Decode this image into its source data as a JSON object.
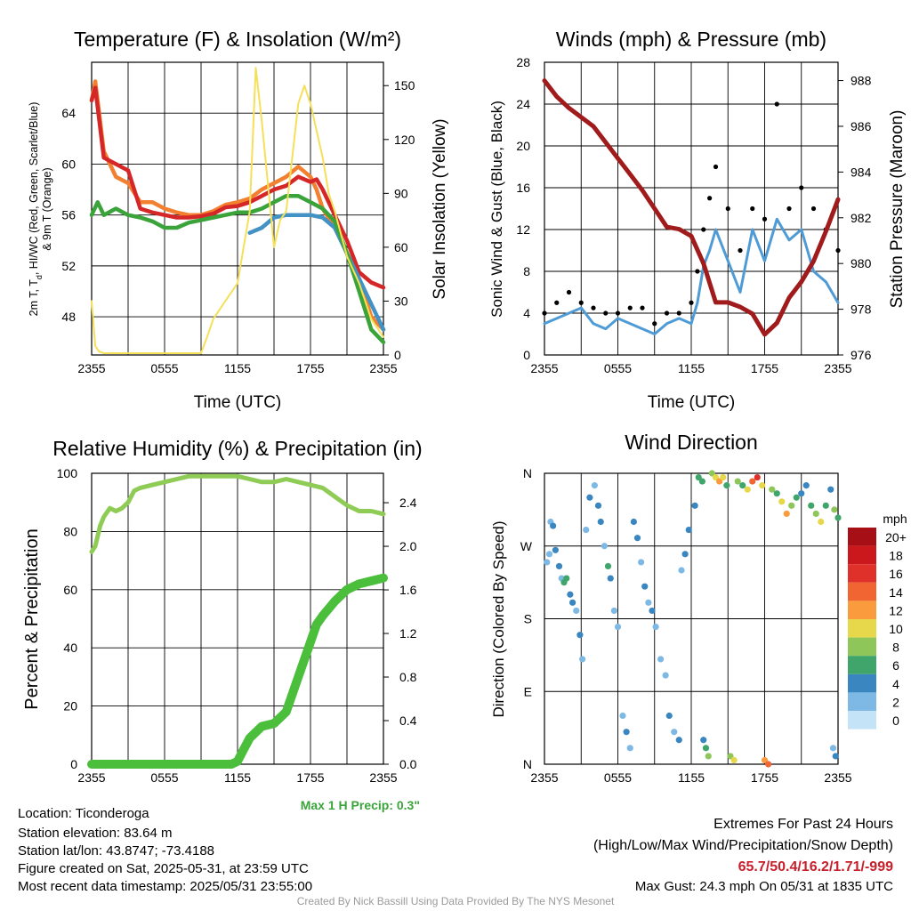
{
  "footer": {
    "location": "Location: Ticonderoga",
    "elevation": "Station elevation: 83.64 m",
    "latlon": "Station lat/lon: 43.8747; -73.4188",
    "created": "Figure created on Sat, 2025-05-31, at 23:59 UTC",
    "recent": "Most recent data timestamp: 2025/05/31 23:55:00",
    "extremes_title": "Extremes For Past 24 Hours",
    "extremes_legend": "(High/Low/Max Wind/Precipitation/Snow Depth)",
    "extremes_values": "65.7/50.4/16.2/1.71/-999",
    "max_gust": "Max Gust: 24.3 mph On 05/31 at 1835 UTC",
    "credit": "Created By Nick Bassill Using Data Provided By The NYS Mesonet",
    "max_precip": "Max 1 H Precip: 0.3\""
  },
  "colors": {
    "temp": "#d62728",
    "dewpoint": "#3aa33a",
    "heat_index": "#4292c6",
    "temp9m": "#f28030",
    "solar": "#f5e05a",
    "wind": "#4e9bd6",
    "gust": "#000000",
    "pressure": "#a01c1c",
    "rh": "#8fcc55",
    "precip": "#4bbf3c",
    "extremes_text": "#c8202b"
  },
  "chart_data": [
    {
      "type": "line",
      "title": "Temperature (F) & Insolation (W/m²)",
      "xlabel": "Time (UTC)",
      "ylabel": "2m T, T_d, HI/WC (Red, Green, Scarlet/Blue) & 9m T (Orange)",
      "ylabel_line1": "2m T, T",
      "ylabel_sub": "d",
      "ylabel_rest": ", HI/WC (Red, Green, Scarlet/Blue)",
      "ylabel_line2": "& 9m T (Orange)",
      "y2label": "Solar Insolation (Yellow)",
      "xticks": [
        "2355",
        "0555",
        "1155",
        "1755",
        "2355"
      ],
      "ylim": [
        45,
        68
      ],
      "yticks": [
        48,
        52,
        56,
        60,
        64
      ],
      "y2lim": [
        0,
        163
      ],
      "y2ticks": [
        0,
        30,
        60,
        90,
        120,
        150
      ],
      "series": [
        {
          "key": "temp9m",
          "axis": "left",
          "x": [
            0,
            0.3,
            1,
            2,
            3,
            4,
            5,
            6,
            7,
            8,
            9,
            10,
            11,
            12,
            13,
            14,
            15,
            16,
            17,
            18,
            18.5,
            19,
            20,
            21,
            22,
            23,
            24
          ],
          "y": [
            65,
            66.5,
            61,
            59,
            58.5,
            57,
            57,
            56.5,
            56.2,
            56,
            56,
            56.3,
            56.8,
            57,
            57.3,
            58,
            58.5,
            59,
            59.8,
            59,
            58,
            56.5,
            55,
            53,
            51,
            48,
            47
          ]
        },
        {
          "key": "temp",
          "axis": "left",
          "x": [
            0,
            0.3,
            1,
            2,
            3,
            4,
            5,
            6,
            7,
            8,
            9,
            10,
            11,
            12,
            13,
            14,
            15,
            16,
            17,
            18,
            18.5,
            19,
            20,
            21,
            22,
            23,
            24
          ],
          "y": [
            65,
            66,
            60.5,
            60,
            59.5,
            56.5,
            56.2,
            56,
            55.8,
            55.8,
            55.9,
            56.1,
            56.6,
            56.7,
            57,
            57.5,
            58,
            58.3,
            59,
            58.6,
            58.8,
            58,
            56,
            54,
            51.5,
            50.7,
            50.3
          ]
        },
        {
          "key": "heat_index",
          "axis": "left",
          "x": [
            13,
            14,
            15,
            16,
            17,
            18,
            19,
            20,
            21,
            22,
            23,
            24
          ],
          "y": [
            54.6,
            55,
            55.8,
            56,
            56,
            56,
            55.8,
            55,
            53,
            51,
            49,
            47
          ]
        },
        {
          "key": "dewpoint",
          "axis": "left",
          "x": [
            0,
            0.5,
            1,
            2,
            3,
            4,
            5,
            6,
            7,
            8,
            9,
            10,
            11,
            12,
            13,
            14,
            15,
            16,
            17,
            18,
            19,
            20,
            21,
            22,
            23,
            24
          ],
          "y": [
            56,
            57,
            56,
            56.5,
            56,
            55.8,
            55.5,
            55,
            55,
            55.4,
            55.6,
            55.8,
            56,
            56.2,
            56.2,
            56.5,
            57,
            57.5,
            57.5,
            57,
            56.5,
            55.5,
            53,
            50,
            47,
            46
          ]
        },
        {
          "key": "solar",
          "axis": "right",
          "x": [
            0,
            0.3,
            0.6,
            1,
            2,
            3,
            4,
            5,
            6,
            7,
            8,
            9,
            9.5,
            10,
            11,
            12,
            13,
            13.5,
            14,
            14.5,
            15,
            15.5,
            16,
            16.5,
            17,
            17.5,
            18,
            18.5,
            19,
            19.5,
            20,
            21,
            22,
            23,
            24
          ],
          "y": [
            30,
            5,
            2,
            1,
            1,
            1,
            1,
            1,
            1,
            1,
            1,
            1,
            10,
            20,
            30,
            40,
            80,
            160,
            130,
            95,
            60,
            75,
            80,
            110,
            140,
            150,
            140,
            125,
            110,
            90,
            80,
            55,
            40,
            20,
            10
          ]
        }
      ]
    },
    {
      "type": "line",
      "title": "Winds (mph) & Pressure (mb)",
      "xlabel": "Time (UTC)",
      "ylabel": "Sonic Wind & Gust (Blue, Black)",
      "y2label": "Station Pressure (Maroon)",
      "xticks": [
        "2355",
        "0555",
        "1155",
        "1755",
        "2355"
      ],
      "ylim": [
        0,
        28
      ],
      "yticks": [
        0,
        4,
        8,
        12,
        16,
        20,
        24,
        28
      ],
      "y2lim": [
        976,
        988.8
      ],
      "y2ticks": [
        976,
        978,
        980,
        982,
        984,
        986,
        988
      ],
      "series": [
        {
          "key": "pressure",
          "axis": "right",
          "x": [
            0,
            1,
            2,
            3,
            4,
            5,
            6,
            7,
            8,
            9,
            10,
            11,
            12,
            13,
            14,
            15,
            16,
            17,
            18,
            19,
            20,
            21,
            22,
            23,
            24
          ],
          "y": [
            988,
            987.3,
            986.8,
            986.4,
            986,
            985.3,
            984.6,
            983.9,
            983.2,
            982.4,
            981.6,
            981.5,
            981.2,
            980,
            978.3,
            978.3,
            978.1,
            977.8,
            976.9,
            977.4,
            978.5,
            979.2,
            980.1,
            981.4,
            982.8
          ]
        },
        {
          "key": "wind",
          "axis": "left",
          "x": [
            0,
            1,
            2,
            3,
            4,
            5,
            6,
            7,
            8,
            9,
            10,
            11,
            12,
            12.5,
            13,
            13.5,
            14,
            15,
            16,
            17,
            18,
            19,
            20,
            21,
            22,
            23,
            24
          ],
          "y": [
            3,
            3.5,
            4,
            4.5,
            3,
            2.5,
            3.5,
            3,
            2.5,
            2,
            3,
            3.5,
            3,
            5,
            8.5,
            10,
            12,
            9,
            6,
            12,
            9,
            13,
            11,
            12,
            8,
            7,
            5
          ]
        },
        {
          "key": "gust",
          "axis": "left",
          "x": [
            0,
            1,
            2,
            3,
            4,
            5,
            6,
            7,
            8,
            9,
            10,
            11,
            12,
            12.5,
            13,
            13.5,
            14,
            15,
            16,
            17,
            18,
            19,
            20,
            21,
            22,
            23,
            24
          ],
          "y": [
            4,
            5,
            6,
            5,
            4.5,
            4,
            4,
            4.5,
            4.5,
            3,
            4,
            4,
            5,
            8,
            12,
            15,
            18,
            14,
            10,
            14,
            13,
            24,
            14,
            16,
            14,
            12,
            10
          ]
        }
      ]
    },
    {
      "type": "line",
      "title": "Relative Humidity (%) & Precipitation (in)",
      "ylabel": "Percent & Precipitation",
      "xticks": [
        "2355",
        "0555",
        "1155",
        "1755",
        "2355"
      ],
      "ylim": [
        0,
        100
      ],
      "yticks": [
        0,
        20,
        40,
        60,
        80,
        100
      ],
      "y2lim": [
        0,
        2.67
      ],
      "y2ticks": [
        "0.0",
        "0.4",
        "0.8",
        "1.2",
        "1.6",
        "2.0",
        "2.4"
      ],
      "series": [
        {
          "key": "rh",
          "axis": "left",
          "x": [
            0,
            0.3,
            0.7,
            1,
            1.5,
            2,
            2.5,
            3,
            3.5,
            4,
            5,
            6,
            7,
            8,
            9,
            10,
            11,
            12,
            13,
            14,
            15,
            16,
            17,
            18,
            19,
            20,
            21,
            22,
            23,
            24
          ],
          "y": [
            73,
            75,
            82,
            85,
            88,
            87,
            88,
            90,
            94,
            95,
            96,
            97,
            98,
            99,
            99,
            99,
            99,
            99,
            98,
            97,
            97,
            98,
            97,
            96,
            95,
            92,
            89,
            87,
            87,
            86
          ]
        },
        {
          "key": "precip",
          "axis": "left",
          "x": [
            0,
            1,
            2,
            3,
            4,
            5,
            6,
            7,
            8,
            9,
            10,
            11,
            11.5,
            12,
            12.5,
            13,
            14,
            15,
            16,
            17,
            18,
            18.5,
            19,
            20,
            21,
            22,
            23,
            24
          ],
          "y": [
            0,
            0,
            0,
            0,
            0,
            0,
            0,
            0,
            0,
            0,
            0,
            0,
            0,
            1,
            5,
            9,
            13,
            14,
            18,
            30,
            42,
            48,
            51,
            56,
            60,
            62,
            63,
            64
          ]
        }
      ]
    },
    {
      "type": "scatter",
      "title": "Wind Direction",
      "ylabel": "Direction (Colored By Speed)",
      "xticks": [
        "2355",
        "0555",
        "1155",
        "1755",
        "2355"
      ],
      "yticks": [
        "N",
        "E",
        "S",
        "W",
        "N"
      ],
      "ylim": [
        0,
        360
      ],
      "colorbar": {
        "unit": "mph",
        "labels": [
          "20+",
          "18",
          "16",
          "14",
          "12",
          "10",
          "8",
          "6",
          "4",
          "2",
          "0"
        ],
        "colors": [
          "#a50f15",
          "#cb181d",
          "#e0302a",
          "#f16533",
          "#fa9c3d",
          "#e6d84a",
          "#8fc65a",
          "#3fa56a",
          "#3a86c1",
          "#7eb9e6",
          "#c5e3f7"
        ]
      },
      "points": [
        [
          0.2,
          250,
          2
        ],
        [
          0.4,
          260,
          2
        ],
        [
          0.5,
          300,
          2
        ],
        [
          0.7,
          295,
          3
        ],
        [
          0.9,
          265,
          4
        ],
        [
          1.2,
          245,
          4
        ],
        [
          1.4,
          230,
          2
        ],
        [
          1.6,
          225,
          6
        ],
        [
          1.8,
          230,
          5
        ],
        [
          2.1,
          210,
          4
        ],
        [
          2.3,
          200,
          3
        ],
        [
          2.6,
          190,
          2
        ],
        [
          2.9,
          160,
          3
        ],
        [
          3.1,
          130,
          2
        ],
        [
          3.4,
          290,
          2
        ],
        [
          3.7,
          330,
          4
        ],
        [
          4.1,
          345,
          2
        ],
        [
          4.4,
          320,
          3
        ],
        [
          4.6,
          300,
          3
        ],
        [
          4.9,
          270,
          2
        ],
        [
          5.2,
          245,
          6
        ],
        [
          5.4,
          230,
          3
        ],
        [
          5.7,
          190,
          2
        ],
        [
          6.0,
          170,
          2
        ],
        [
          6.4,
          60,
          2
        ],
        [
          6.7,
          40,
          3
        ],
        [
          7.0,
          20,
          2
        ],
        [
          7.3,
          300,
          3
        ],
        [
          7.6,
          280,
          4
        ],
        [
          7.9,
          250,
          2
        ],
        [
          8.2,
          220,
          3
        ],
        [
          8.5,
          200,
          2
        ],
        [
          8.8,
          190,
          3
        ],
        [
          9.1,
          170,
          2
        ],
        [
          9.5,
          130,
          2
        ],
        [
          9.9,
          110,
          2
        ],
        [
          10.2,
          60,
          3
        ],
        [
          10.6,
          40,
          2
        ],
        [
          11.0,
          30,
          4
        ],
        [
          11.2,
          240,
          2
        ],
        [
          11.5,
          260,
          3
        ],
        [
          11.8,
          290,
          4
        ],
        [
          12.3,
          320,
          3
        ],
        [
          12.6,
          355,
          5
        ],
        [
          12.9,
          350,
          5
        ],
        [
          13.0,
          30,
          4
        ],
        [
          13.2,
          20,
          5
        ],
        [
          13.4,
          10,
          7
        ],
        [
          13.7,
          360,
          8
        ],
        [
          14.0,
          355,
          10
        ],
        [
          14.3,
          350,
          12
        ],
        [
          14.6,
          355,
          10
        ],
        [
          14.9,
          345,
          6
        ],
        [
          15.2,
          10,
          8
        ],
        [
          15.5,
          5,
          9
        ],
        [
          15.8,
          350,
          8
        ],
        [
          16.2,
          345,
          6
        ],
        [
          16.6,
          340,
          10
        ],
        [
          17.0,
          350,
          14
        ],
        [
          17.4,
          355,
          16
        ],
        [
          17.8,
          345,
          10
        ],
        [
          18.0,
          5,
          12
        ],
        [
          18.3,
          0,
          14
        ],
        [
          18.6,
          340,
          8
        ],
        [
          19.0,
          335,
          6
        ],
        [
          19.4,
          325,
          10
        ],
        [
          19.8,
          310,
          12
        ],
        [
          20.2,
          320,
          8
        ],
        [
          20.6,
          330,
          6
        ],
        [
          21.0,
          335,
          4
        ],
        [
          21.4,
          345,
          4
        ],
        [
          21.8,
          320,
          6
        ],
        [
          22.2,
          310,
          8
        ],
        [
          22.6,
          300,
          10
        ],
        [
          23.0,
          320,
          6
        ],
        [
          23.4,
          340,
          4
        ],
        [
          23.7,
          315,
          8
        ],
        [
          24.0,
          305,
          6
        ],
        [
          23.6,
          20,
          2
        ],
        [
          23.8,
          10,
          3
        ]
      ]
    }
  ]
}
